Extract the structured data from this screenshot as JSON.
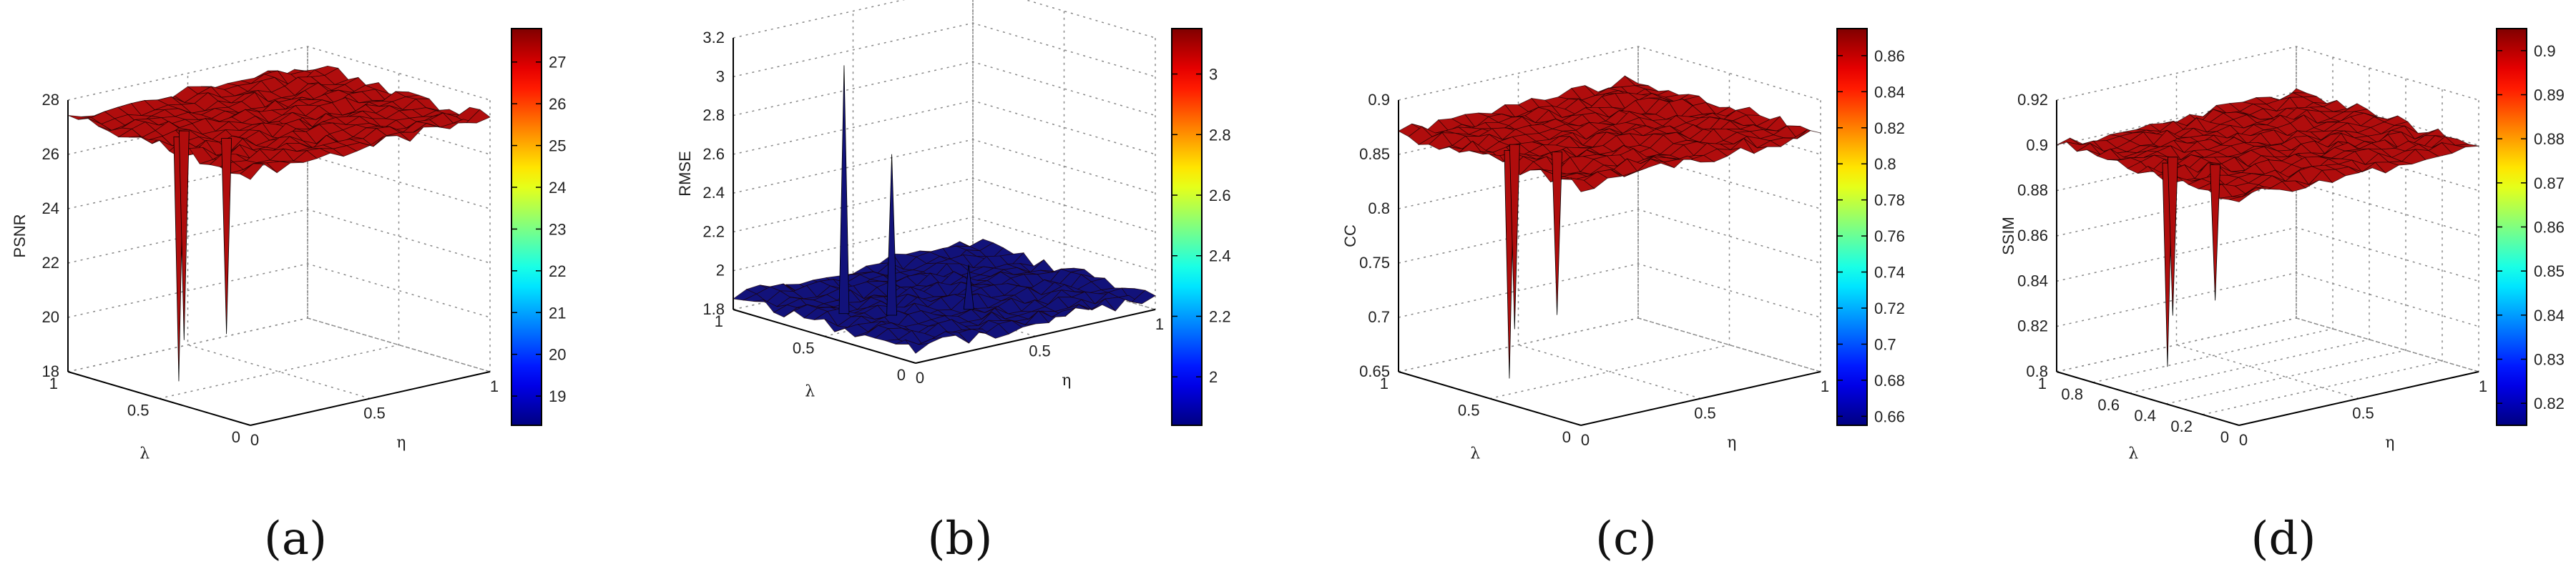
{
  "chart_data": [
    {
      "type": "surface",
      "caption": "(a)",
      "zlabel": "PSNR",
      "xlabel": "η",
      "ylabel": "λ",
      "zlim": [
        18,
        28
      ],
      "z_ticks": [
        "18",
        "20",
        "22",
        "24",
        "26",
        "28"
      ],
      "x_ticks": [
        "0",
        "0.5",
        "1"
      ],
      "y_ticks": [
        "0",
        "0.5",
        "1"
      ],
      "surface_level": 27.3,
      "surface_color": "#b00d0d",
      "spikes": [
        {
          "eta": 0.12,
          "lambda": 0.55,
          "value": 18.3
        },
        {
          "eta": 0.22,
          "lambda": 0.42,
          "value": 20.1
        },
        {
          "eta": 0.18,
          "lambda": 0.6,
          "value": 19.6
        }
      ],
      "colorbar": {
        "min": 18.3,
        "max": 27.8,
        "ticks": [
          "19",
          "20",
          "21",
          "22",
          "23",
          "24",
          "25",
          "26",
          "27"
        ]
      }
    },
    {
      "type": "surface",
      "caption": "(b)",
      "zlabel": "RMSE",
      "xlabel": "η",
      "ylabel": "λ",
      "zlim": [
        1.8,
        3.2
      ],
      "z_ticks": [
        "1.8",
        "2",
        "2.2",
        "2.4",
        "2.6",
        "2.8",
        "3",
        "3.2"
      ],
      "x_ticks": [
        "0",
        "0.5",
        "1"
      ],
      "y_ticks": [
        "0",
        "0.5",
        "1"
      ],
      "surface_level": 1.87,
      "surface_color": "#12127a",
      "spikes": [
        {
          "eta": 0.12,
          "lambda": 0.55,
          "value": 3.15
        },
        {
          "eta": 0.22,
          "lambda": 0.42,
          "value": 2.7
        },
        {
          "eta": 0.45,
          "lambda": 0.3,
          "value": 2.1
        }
      ],
      "colorbar": {
        "min": 1.84,
        "max": 3.15,
        "ticks": [
          "2",
          "2.2",
          "2.4",
          "2.6",
          "2.8",
          "3"
        ]
      }
    },
    {
      "type": "surface",
      "caption": "(c)",
      "zlabel": "CC",
      "xlabel": "η",
      "ylabel": "λ",
      "zlim": [
        0.65,
        0.9
      ],
      "z_ticks": [
        "0.65",
        "0.7",
        "0.75",
        "0.8",
        "0.85",
        "0.9"
      ],
      "x_ticks": [
        "0",
        "0.5",
        "1"
      ],
      "y_ticks": [
        "0",
        "0.5",
        "1"
      ],
      "surface_level": 0.87,
      "surface_color": "#b00d0d",
      "spikes": [
        {
          "eta": 0.12,
          "lambda": 0.55,
          "value": 0.66
        },
        {
          "eta": 0.22,
          "lambda": 0.42,
          "value": 0.72
        },
        {
          "eta": 0.18,
          "lambda": 0.6,
          "value": 0.7
        }
      ],
      "colorbar": {
        "min": 0.655,
        "max": 0.875,
        "ticks": [
          "0.66",
          "0.68",
          "0.7",
          "0.72",
          "0.74",
          "0.76",
          "0.78",
          "0.8",
          "0.82",
          "0.84",
          "0.86"
        ]
      }
    },
    {
      "type": "surface",
      "caption": "(d)",
      "zlabel": "SSIM",
      "xlabel": "η",
      "ylabel": "λ",
      "zlim": [
        0.8,
        0.92
      ],
      "z_ticks": [
        "0.8",
        "0.82",
        "0.84",
        "0.86",
        "0.88",
        "0.9",
        "0.92"
      ],
      "x_ticks": [
        "0",
        "0.5",
        "1"
      ],
      "y_ticks": [
        "0",
        "0.2",
        "0.4",
        "0.6",
        "0.8",
        "1"
      ],
      "surface_level": 0.9,
      "surface_color": "#b00d0d",
      "spikes": [
        {
          "eta": 0.12,
          "lambda": 0.55,
          "value": 0.81
        },
        {
          "eta": 0.22,
          "lambda": 0.42,
          "value": 0.84
        },
        {
          "eta": 0.18,
          "lambda": 0.6,
          "value": 0.83
        }
      ],
      "colorbar": {
        "min": 0.815,
        "max": 0.905,
        "ticks": [
          "0.82",
          "0.83",
          "0.84",
          "0.85",
          "0.86",
          "0.87",
          "0.88",
          "0.89",
          "0.9"
        ]
      }
    }
  ]
}
